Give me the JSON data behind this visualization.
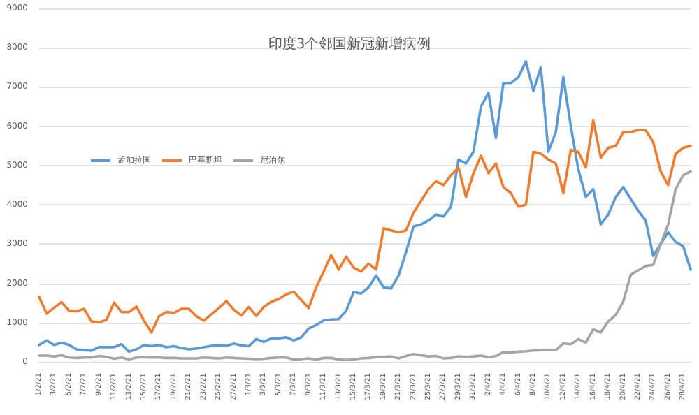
{
  "chart_data": {
    "type": "line",
    "title": "印度3个邻国新冠新增病例",
    "categories": [
      "1/2/21",
      null,
      "3/2/21",
      null,
      "5/2/21",
      null,
      "7/2/21",
      null,
      "9/2/21",
      null,
      "11/2/21",
      null,
      "13/2/21",
      null,
      "15/2/21",
      null,
      "17/2/21",
      null,
      "19/2/21",
      null,
      "21/2/21",
      null,
      "23/2/21",
      null,
      "25/2/21",
      null,
      "27/2/21",
      null,
      "1/3/21",
      null,
      "3/3/21",
      null,
      "5/3/21",
      null,
      "7/3/21",
      null,
      "9/3/21",
      null,
      "11/3/21",
      null,
      "13/3/21",
      null,
      "15/3/21",
      null,
      "17/3/21",
      null,
      "19/3/21",
      null,
      "21/3/21",
      null,
      "23/3/21",
      null,
      "25/3/21",
      null,
      "27/3/21",
      null,
      "29/3/21",
      null,
      "31/3/21",
      null,
      "2/4/21",
      null,
      "4/4/21",
      null,
      "6/4/21",
      null,
      "8/4/21",
      null,
      "10/4/21",
      null,
      "12/4/21",
      null,
      "14/4/21",
      null,
      "16/4/21",
      null,
      "18/4/21",
      null,
      "20/4/21",
      null,
      "22/4/21",
      null,
      "24/4/21",
      null,
      "26/4/21",
      null,
      "28/4/21",
      null
    ],
    "series": [
      {
        "name": "孟加拉国",
        "color": "#5b9bd5",
        "values": [
          430,
          545,
          430,
          490,
          430,
          320,
          300,
          285,
          375,
          375,
          375,
          450,
          260,
          320,
          430,
          400,
          430,
          375,
          400,
          350,
          320,
          340,
          375,
          410,
          420,
          410,
          465,
          420,
          400,
          580,
          510,
          600,
          600,
          625,
          545,
          625,
          850,
          940,
          1060,
          1080,
          1090,
          1300,
          1780,
          1740,
          1900,
          2200,
          1900,
          1870,
          2200,
          2800,
          3450,
          3500,
          3600,
          3750,
          3700,
          3950,
          5150,
          5050,
          5350,
          6500,
          6850,
          5700,
          7100,
          7100,
          7250,
          7650,
          6900,
          7500,
          5350,
          5850,
          7250,
          6000,
          4900,
          4200,
          4400,
          3500,
          3750,
          4200,
          4450,
          4150,
          3850,
          3600,
          2700,
          3000,
          3300,
          3050,
          2950,
          2350
        ]
      },
      {
        "name": "巴基斯坦",
        "color": "#ed7d31",
        "values": [
          1650,
          1230,
          1380,
          1520,
          1300,
          1290,
          1350,
          1030,
          1010,
          1070,
          1510,
          1270,
          1270,
          1410,
          1050,
          750,
          1160,
          1270,
          1250,
          1350,
          1350,
          1160,
          1050,
          1210,
          1370,
          1550,
          1330,
          1180,
          1400,
          1170,
          1400,
          1530,
          1600,
          1720,
          1790,
          1580,
          1370,
          1900,
          2300,
          2720,
          2350,
          2680,
          2400,
          2300,
          2500,
          2350,
          3400,
          3350,
          3300,
          3350,
          3800,
          4100,
          4400,
          4600,
          4500,
          4750,
          4950,
          4200,
          4800,
          5250,
          4800,
          5050,
          4450,
          4300,
          3950,
          4000,
          5350,
          5300,
          5150,
          5050,
          4300,
          5400,
          5350,
          4950,
          6150,
          5200,
          5450,
          5500,
          5850,
          5850,
          5900,
          5900,
          5600,
          4850,
          4500,
          5300,
          5450,
          5500
        ]
      },
      {
        "name": "尼泊尔",
        "color": "#a5a5a5",
        "values": [
          160,
          160,
          140,
          170,
          110,
          100,
          110,
          110,
          150,
          130,
          80,
          110,
          60,
          110,
          120,
          110,
          110,
          100,
          100,
          90,
          90,
          90,
          110,
          100,
          90,
          110,
          100,
          90,
          80,
          70,
          80,
          100,
          110,
          110,
          60,
          70,
          90,
          60,
          100,
          100,
          60,
          50,
          60,
          90,
          100,
          120,
          130,
          140,
          90,
          150,
          200,
          170,
          140,
          150,
          90,
          100,
          140,
          130,
          140,
          160,
          120,
          150,
          250,
          240,
          260,
          270,
          290,
          300,
          310,
          300,
          470,
          450,
          580,
          490,
          830,
          750,
          1030,
          1200,
          1540,
          2220,
          2330,
          2440,
          2470,
          3000,
          3500,
          4400,
          4750,
          4850
        ]
      }
    ],
    "ylim": [
      0,
      9000
    ],
    "yticks": [
      0,
      1000,
      2000,
      3000,
      4000,
      5000,
      6000,
      7000,
      8000,
      9000
    ],
    "grid": "y",
    "legend": "left",
    "marker": "none",
    "line_style": "solid"
  }
}
